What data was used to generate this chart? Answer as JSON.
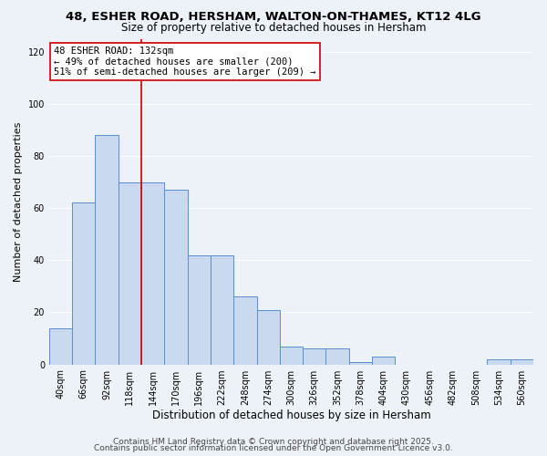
{
  "title": "48, ESHER ROAD, HERSHAM, WALTON-ON-THAMES, KT12 4LG",
  "subtitle": "Size of property relative to detached houses in Hersham",
  "xlabel": "Distribution of detached houses by size in Hersham",
  "ylabel": "Number of detached properties",
  "bar_labels": [
    "40sqm",
    "66sqm",
    "92sqm",
    "118sqm",
    "144sqm",
    "170sqm",
    "196sqm",
    "222sqm",
    "248sqm",
    "274sqm",
    "300sqm",
    "326sqm",
    "352sqm",
    "378sqm",
    "404sqm",
    "430sqm",
    "456sqm",
    "482sqm",
    "508sqm",
    "534sqm",
    "560sqm"
  ],
  "bar_values": [
    14,
    62,
    88,
    70,
    70,
    67,
    42,
    42,
    26,
    21,
    7,
    6,
    6,
    1,
    3,
    0,
    0,
    0,
    0,
    2,
    2
  ],
  "bar_color": "#c9d9f0",
  "bar_edge_color": "#5b8fc9",
  "vline_color": "#cc0000",
  "vline_x": 3.5,
  "annotation_line1": "48 ESHER ROAD: 132sqm",
  "annotation_line2": "← 49% of detached houses are smaller (200)",
  "annotation_line3": "51% of semi-detached houses are larger (209) →",
  "annotation_box_color": "#ffffff",
  "annotation_box_edge_color": "#cc0000",
  "ylim": [
    0,
    125
  ],
  "yticks": [
    0,
    20,
    40,
    60,
    80,
    100,
    120
  ],
  "bg_color": "#edf1f8",
  "grid_color": "#ffffff",
  "footer1": "Contains HM Land Registry data © Crown copyright and database right 2025.",
  "footer2": "Contains public sector information licensed under the Open Government Licence v3.0.",
  "title_fontsize": 9.5,
  "subtitle_fontsize": 8.5,
  "annotation_fontsize": 7.5,
  "xlabel_fontsize": 8.5,
  "ylabel_fontsize": 8,
  "tick_fontsize": 7,
  "footer_fontsize": 6.5
}
